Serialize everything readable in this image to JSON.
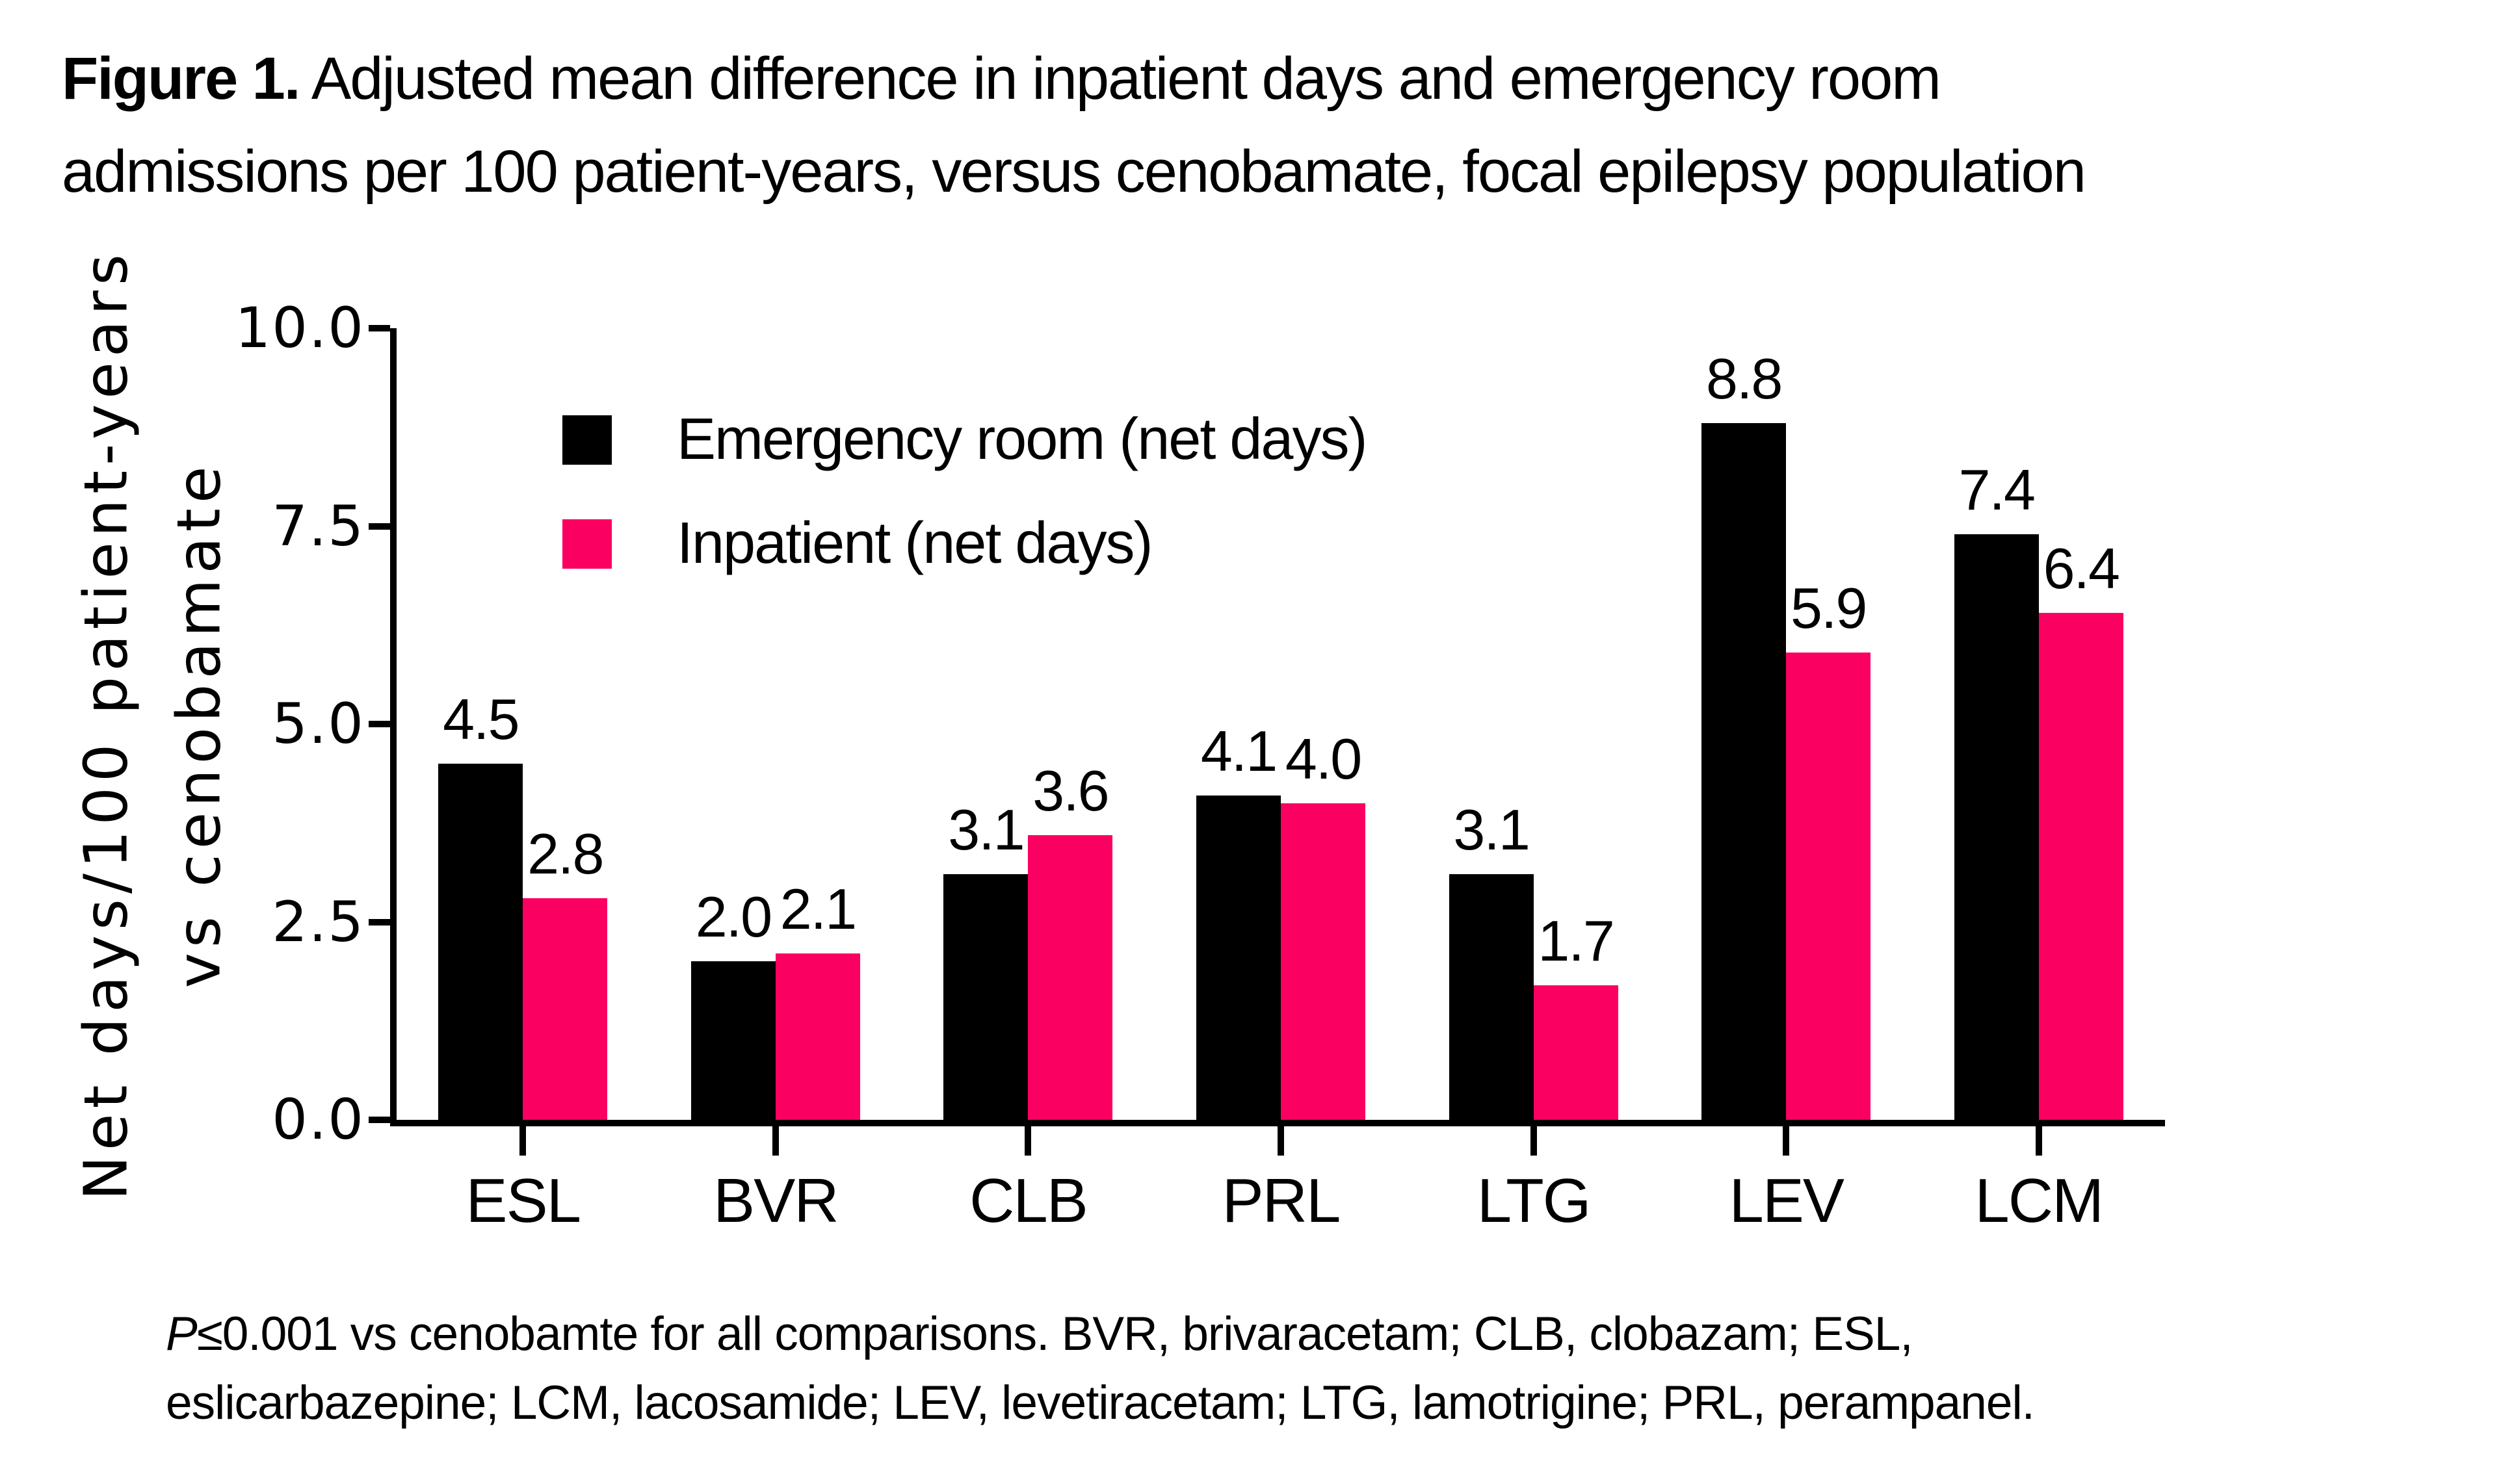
{
  "figure": {
    "title_prefix": "Figure 1.",
    "title_line1_rest": " Adjusted mean difference in inpatient days and emergency room",
    "title_line2": "admissions per 100 patient-years, versus cenobamate, focal epilepsy population"
  },
  "colors": {
    "emergency": "#000000",
    "inpatient": "#FA0061",
    "text": "#000000",
    "background": "#FFFFFF"
  },
  "chart_data": {
    "type": "bar",
    "title": "",
    "categories": [
      "ESL",
      "BVR",
      "CLB",
      "PRL",
      "LTG",
      "LEV",
      "LCM"
    ],
    "series": [
      {
        "name": "Emergency room (net days)",
        "color_key": "emergency",
        "values": [
          4.5,
          2.0,
          3.1,
          4.1,
          3.1,
          8.8,
          7.4
        ]
      },
      {
        "name": "Inpatient (net days)",
        "color_key": "inpatient",
        "values": [
          2.8,
          2.1,
          3.6,
          4.0,
          1.7,
          5.9,
          6.4
        ]
      }
    ],
    "ylabel_line1": "Net days/100 patient-years",
    "ylabel_line2": "vs cenobamate",
    "xlabel": "",
    "ylim": [
      0,
      10
    ],
    "yticks": [
      0.0,
      2.5,
      5.0,
      7.5,
      10.0
    ],
    "ytick_labels": [
      "0.0",
      "2.5",
      "5.0",
      "7.5",
      "10.0"
    ],
    "grid": false,
    "legend_position": "top-left-inside",
    "value_labels": "one-decimal-above-each-bar"
  },
  "footnote": {
    "p": "P",
    "line1_rest": "≤0.001 vs cenobamte for all comparisons. BVR, brivaracetam; CLB, clobazam; ESL,",
    "line2": "eslicarbazepine; LCM, lacosamide; LEV, levetiracetam; LTG, lamotrigine; PRL, perampanel."
  }
}
